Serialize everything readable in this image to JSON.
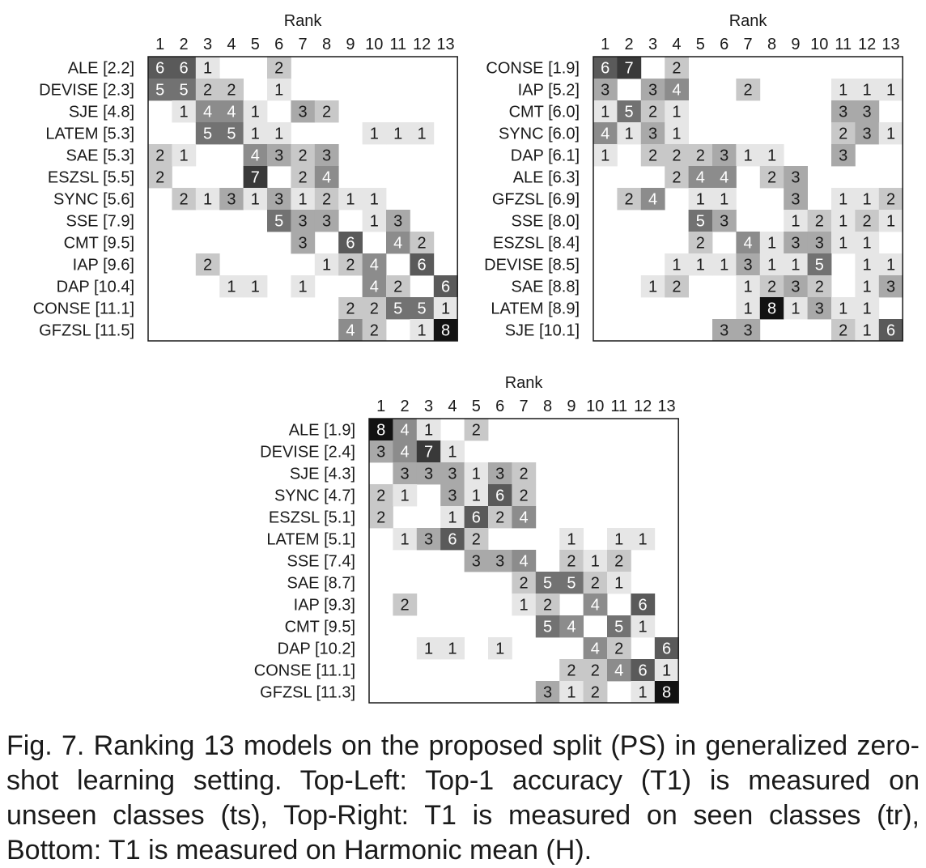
{
  "chart_data": [
    {
      "type": "heatmap",
      "xlabel": "Rank",
      "x_ticks": [
        "1",
        "2",
        "3",
        "4",
        "5",
        "6",
        "7",
        "8",
        "9",
        "10",
        "11",
        "12",
        "13"
      ],
      "rows": [
        {
          "label": "ALE [2.2]",
          "counts": [
            6,
            6,
            1,
            0,
            0,
            2,
            0,
            0,
            0,
            0,
            0,
            0,
            0
          ]
        },
        {
          "label": "DEVISE [2.3]",
          "counts": [
            5,
            5,
            2,
            2,
            0,
            1,
            0,
            0,
            0,
            0,
            0,
            0,
            0
          ]
        },
        {
          "label": "SJE [4.8]",
          "counts": [
            0,
            1,
            4,
            4,
            1,
            0,
            3,
            2,
            0,
            0,
            0,
            0,
            0
          ]
        },
        {
          "label": "LATEM [5.3]",
          "counts": [
            0,
            0,
            5,
            5,
            1,
            1,
            0,
            0,
            0,
            1,
            1,
            1,
            0
          ]
        },
        {
          "label": "SAE [5.3]",
          "counts": [
            2,
            1,
            0,
            0,
            4,
            3,
            2,
            3,
            0,
            0,
            0,
            0,
            0
          ]
        },
        {
          "label": "ESZSL [5.5]",
          "counts": [
            2,
            0,
            0,
            0,
            7,
            0,
            2,
            4,
            0,
            0,
            0,
            0,
            0
          ]
        },
        {
          "label": "SYNC [5.6]",
          "counts": [
            0,
            2,
            1,
            3,
            1,
            3,
            1,
            2,
            1,
            1,
            0,
            0,
            0
          ]
        },
        {
          "label": "SSE [7.9]",
          "counts": [
            0,
            0,
            0,
            0,
            0,
            5,
            3,
            3,
            0,
            1,
            3,
            0,
            0
          ]
        },
        {
          "label": "CMT [9.5]",
          "counts": [
            0,
            0,
            0,
            0,
            0,
            0,
            3,
            0,
            6,
            0,
            4,
            2,
            0
          ]
        },
        {
          "label": "IAP [9.6]",
          "counts": [
            0,
            0,
            2,
            0,
            0,
            0,
            0,
            1,
            2,
            4,
            0,
            6,
            0
          ]
        },
        {
          "label": "DAP [10.4]",
          "counts": [
            0,
            0,
            0,
            1,
            1,
            0,
            1,
            0,
            0,
            4,
            2,
            0,
            6
          ]
        },
        {
          "label": "CONSE [11.1]",
          "counts": [
            0,
            0,
            0,
            0,
            0,
            0,
            0,
            0,
            2,
            2,
            5,
            5,
            1
          ]
        },
        {
          "label": "GFZSL [11.5]",
          "counts": [
            0,
            0,
            0,
            0,
            0,
            0,
            0,
            0,
            4,
            2,
            0,
            1,
            8
          ]
        }
      ]
    },
    {
      "type": "heatmap",
      "xlabel": "Rank",
      "x_ticks": [
        "1",
        "2",
        "3",
        "4",
        "5",
        "6",
        "7",
        "8",
        "9",
        "10",
        "11",
        "12",
        "13"
      ],
      "rows": [
        {
          "label": "CONSE [1.9]",
          "counts": [
            6,
            7,
            0,
            2,
            0,
            0,
            0,
            0,
            0,
            0,
            0,
            0,
            0
          ]
        },
        {
          "label": "IAP [5.2]",
          "counts": [
            3,
            0,
            3,
            4,
            0,
            0,
            2,
            0,
            0,
            0,
            1,
            1,
            1
          ]
        },
        {
          "label": "CMT [6.0]",
          "counts": [
            1,
            5,
            2,
            1,
            0,
            0,
            0,
            0,
            0,
            0,
            3,
            3,
            0
          ]
        },
        {
          "label": "SYNC [6.0]",
          "counts": [
            4,
            1,
            3,
            1,
            0,
            0,
            0,
            0,
            0,
            0,
            2,
            3,
            1
          ]
        },
        {
          "label": "DAP [6.1]",
          "counts": [
            1,
            0,
            2,
            2,
            2,
            3,
            1,
            1,
            0,
            0,
            3,
            0,
            0
          ]
        },
        {
          "label": "ALE [6.3]",
          "counts": [
            0,
            0,
            0,
            2,
            4,
            4,
            0,
            2,
            3,
            0,
            0,
            0,
            0
          ]
        },
        {
          "label": "GFZSL [6.9]",
          "counts": [
            0,
            2,
            4,
            0,
            1,
            1,
            0,
            0,
            3,
            0,
            1,
            1,
            2
          ]
        },
        {
          "label": "SSE [8.0]",
          "counts": [
            0,
            0,
            0,
            0,
            5,
            3,
            0,
            0,
            1,
            2,
            1,
            2,
            1
          ]
        },
        {
          "label": "ESZSL [8.4]",
          "counts": [
            0,
            0,
            0,
            0,
            2,
            0,
            4,
            1,
            3,
            3,
            1,
            1,
            0
          ]
        },
        {
          "label": "DEVISE [8.5]",
          "counts": [
            0,
            0,
            0,
            1,
            1,
            1,
            3,
            1,
            1,
            5,
            0,
            1,
            1
          ]
        },
        {
          "label": "SAE [8.8]",
          "counts": [
            0,
            0,
            1,
            2,
            0,
            0,
            1,
            2,
            3,
            2,
            0,
            1,
            3
          ]
        },
        {
          "label": "LATEM [8.9]",
          "counts": [
            0,
            0,
            0,
            0,
            0,
            0,
            1,
            8,
            1,
            3,
            1,
            1,
            0
          ]
        },
        {
          "label": "SJE [10.1]",
          "counts": [
            0,
            0,
            0,
            0,
            0,
            3,
            3,
            0,
            0,
            0,
            2,
            1,
            6
          ]
        }
      ]
    },
    {
      "type": "heatmap",
      "xlabel": "Rank",
      "x_ticks": [
        "1",
        "2",
        "3",
        "4",
        "5",
        "6",
        "7",
        "8",
        "9",
        "10",
        "11",
        "12",
        "13"
      ],
      "rows": [
        {
          "label": "ALE [1.9]",
          "counts": [
            8,
            4,
            1,
            0,
            2,
            0,
            0,
            0,
            0,
            0,
            0,
            0,
            0
          ]
        },
        {
          "label": "DEVISE [2.4]",
          "counts": [
            3,
            4,
            7,
            1,
            0,
            0,
            0,
            0,
            0,
            0,
            0,
            0,
            0
          ]
        },
        {
          "label": "SJE [4.3]",
          "counts": [
            0,
            3,
            3,
            3,
            1,
            3,
            2,
            0,
            0,
            0,
            0,
            0,
            0
          ]
        },
        {
          "label": "SYNC [4.7]",
          "counts": [
            2,
            1,
            0,
            3,
            1,
            6,
            2,
            0,
            0,
            0,
            0,
            0,
            0
          ]
        },
        {
          "label": "ESZSL [5.1]",
          "counts": [
            2,
            0,
            0,
            1,
            6,
            2,
            4,
            0,
            0,
            0,
            0,
            0,
            0
          ]
        },
        {
          "label": "LATEM [5.1]",
          "counts": [
            0,
            1,
            3,
            6,
            2,
            0,
            0,
            0,
            1,
            0,
            1,
            1,
            0
          ]
        },
        {
          "label": "SSE [7.4]",
          "counts": [
            0,
            0,
            0,
            0,
            3,
            3,
            4,
            0,
            2,
            1,
            2,
            0,
            0
          ]
        },
        {
          "label": "SAE [8.7]",
          "counts": [
            0,
            0,
            0,
            0,
            0,
            0,
            2,
            5,
            5,
            2,
            1,
            0,
            0
          ]
        },
        {
          "label": "IAP [9.3]",
          "counts": [
            0,
            2,
            0,
            0,
            0,
            0,
            1,
            2,
            0,
            4,
            0,
            6,
            0
          ]
        },
        {
          "label": "CMT [9.5]",
          "counts": [
            0,
            0,
            0,
            0,
            0,
            0,
            0,
            5,
            4,
            0,
            5,
            1,
            0
          ]
        },
        {
          "label": "DAP [10.2]",
          "counts": [
            0,
            0,
            1,
            1,
            0,
            1,
            0,
            0,
            0,
            4,
            2,
            0,
            6
          ]
        },
        {
          "label": "CONSE [11.1]",
          "counts": [
            0,
            0,
            0,
            0,
            0,
            0,
            0,
            0,
            2,
            2,
            4,
            6,
            1
          ]
        },
        {
          "label": "GFZSL [11.3]",
          "counts": [
            0,
            0,
            0,
            0,
            0,
            0,
            0,
            3,
            1,
            2,
            0,
            1,
            8
          ]
        }
      ]
    }
  ],
  "caption": "Fig. 7. Ranking 13 models on the proposed split (PS) in generalized zero-shot learning setting. Top-Left: Top-1 accuracy (T1) is measured on unseen classes (ts), Top-Right: T1 is measured on seen classes (tr), Bottom: T1 is measured on Harmonic mean (H)."
}
